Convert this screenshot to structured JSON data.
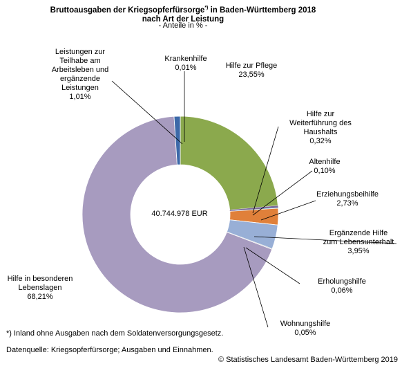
{
  "chart_data": {
    "type": "pie",
    "title": "Bruttoausgaben der Kriegsopferfürsorge",
    "title_sup": "*)",
    "title_suffix": " in Baden-Württemberg 2018 nach Art der Leistung",
    "subtitle": "- Anteile in % -",
    "center_label": "40.744.978 EUR",
    "slices": [
      {
        "name": "Krankenhilfe",
        "label": "Krankenhilfe",
        "value_label": "0,01%",
        "value": 0.01,
        "color": "#4f81bd"
      },
      {
        "name": "Hilfe zur Pflege",
        "label": "Hilfe zur Pflege",
        "value_label": "23,55%",
        "value": 23.55,
        "color": "#8ba94d"
      },
      {
        "name": "Hilfe zur Weiterführung des Haushalts",
        "label": "Hilfe zur Weiterführung des Haushalts",
        "value_label": "0,32%",
        "value": 0.32,
        "color": "#7e6a9a"
      },
      {
        "name": "Altenhilfe",
        "label": "Altenhilfe",
        "value_label": "0,10%",
        "value": 0.1,
        "color": "#4bacc6"
      },
      {
        "name": "Erziehungsbeihilfe",
        "label": "Erziehungsbeihilfe",
        "value_label": "2,73%",
        "value": 2.73,
        "color": "#e0803a"
      },
      {
        "name": "Ergänzende Hilfe zum Lebensunterhalt",
        "label": "Ergänzende Hilfe zum Lebensunterhalt",
        "value_label": "3,95%",
        "value": 3.95,
        "color": "#98afd6"
      },
      {
        "name": "Erholungshilfe",
        "label": "Erholungshilfe",
        "value_label": "0,06%",
        "value": 0.06,
        "color": "#c8c8c8"
      },
      {
        "name": "Wohnungshilfe",
        "label": "Wohnungshilfe",
        "value_label": "0,05%",
        "value": 0.05,
        "color": "#d0d8ea"
      },
      {
        "name": "Hilfe in besonderen Lebenslagen",
        "label": "Hilfe in besonderen Lebenslagen",
        "value_label": "68,21%",
        "value": 68.21,
        "color": "#a79bbf"
      },
      {
        "name": "Leistungen zur Teilhabe am Arbeitsleben und ergänzende Leistungen",
        "label": "Leistungen zur Teilhabe am Arbeitsleben und ergänzende Leistungen",
        "value_label": "1,01%",
        "value": 1.01,
        "color": "#3c69a8"
      }
    ]
  },
  "footnote": "*) Inland ohne Ausgaben nach dem Soldatenversorgungsgesetz.",
  "source": "Datenquelle: Kriegsopferfürsorge; Ausgaben und Einnahmen.",
  "copyright": "© Statistisches Landesamt Baden-Württemberg 2019"
}
